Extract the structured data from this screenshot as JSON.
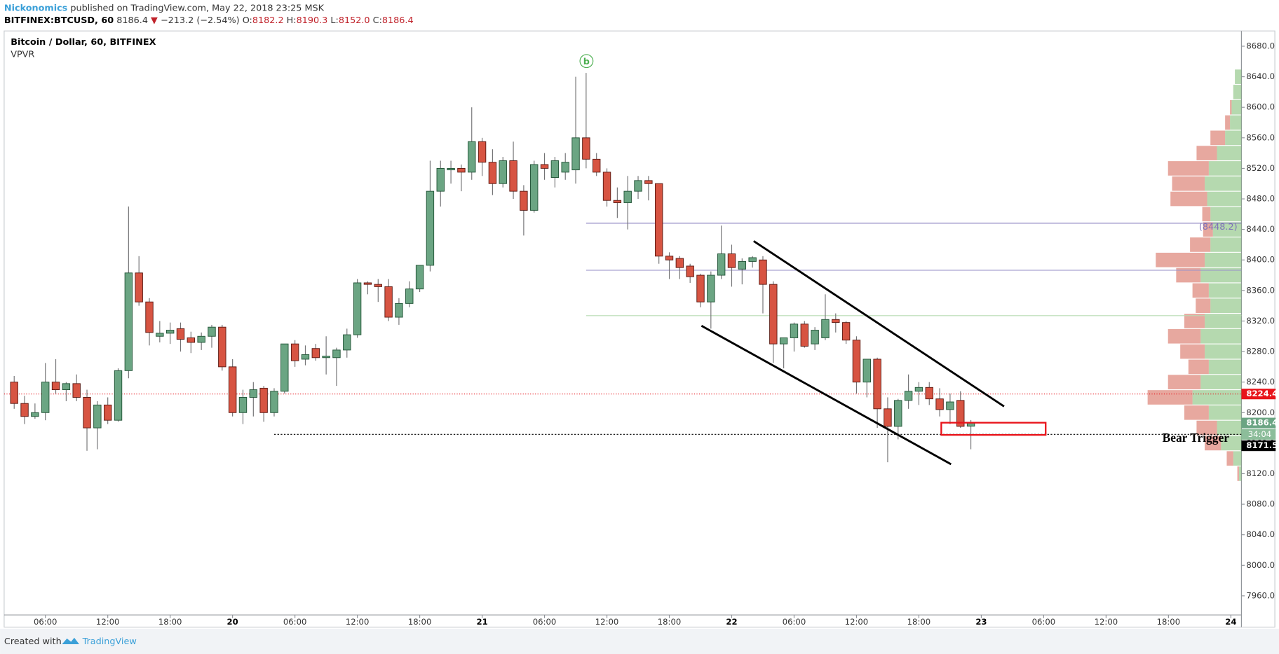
{
  "header": {
    "author": "Nickonomics",
    "published": "published on TradingView.com, May 22, 2018 23:25 MSK",
    "symbol": "BITFINEX:BTCUSD, 60",
    "last": "8186.4",
    "arrow": "▼",
    "change": "−213.2 (−2.54%)",
    "o_label": "O:",
    "o": "8182.2",
    "h_label": "H:",
    "h": "8190.3",
    "l_label": "L:",
    "l": "8152.0",
    "c_label": "C:",
    "c": "8186.4"
  },
  "footer": {
    "created": "Created with",
    "brand": "TradingView"
  },
  "chart_data": {
    "type": "candlestick",
    "title": "Bitcoin / Dollar, 60, BITFINEX",
    "subtitle": "VPVR",
    "up_color": "#6ba583",
    "down_color": "#d75442",
    "candles": {
      "open": [
        8240,
        8212,
        8195,
        8200,
        8240,
        8230,
        8238,
        8220,
        8180,
        8210,
        8190,
        8255,
        8383,
        8345,
        8300,
        8304,
        8310,
        8298,
        8292,
        8300,
        8312,
        8260,
        8200,
        8220,
        8232,
        8200,
        8228,
        8290,
        8270,
        8284,
        8272,
        8272,
        8282,
        8302,
        8370,
        8368,
        8365,
        8325,
        8343,
        8362,
        8393,
        8490,
        8518,
        8520,
        8515,
        8555,
        8528,
        8500,
        8530,
        8490,
        8465,
        8525,
        8508,
        8515,
        8518,
        8560,
        8532,
        8515,
        8478,
        8475,
        8490,
        8504,
        8500,
        8405,
        8402,
        8392,
        8380,
        8345,
        8380,
        8408,
        8388,
        8398,
        8400,
        8368,
        8290,
        8298,
        8316,
        8290,
        8298,
        8322,
        8318,
        8295,
        8240,
        8270,
        8205,
        8182,
        8216,
        8228,
        8233,
        8218,
        8204,
        8216,
        8182.2
      ],
      "high": [
        8248,
        8222,
        8212,
        8265,
        8270,
        8240,
        8250,
        8230,
        8215,
        8220,
        8258,
        8470,
        8405,
        8350,
        8320,
        8318,
        8318,
        8306,
        8305,
        8315,
        8315,
        8270,
        8230,
        8240,
        8235,
        8232,
        8290,
        8295,
        8288,
        8290,
        8300,
        8285,
        8310,
        8375,
        8372,
        8375,
        8375,
        8350,
        8372,
        8390,
        8530,
        8530,
        8530,
        8525,
        8600,
        8560,
        8545,
        8535,
        8555,
        8498,
        8530,
        8540,
        8535,
        8540,
        8640,
        8645,
        8540,
        8520,
        8495,
        8510,
        8510,
        8510,
        8500,
        8410,
        8405,
        8395,
        8382,
        8385,
        8445,
        8420,
        8402,
        8405,
        8405,
        8372,
        8298,
        8318,
        8320,
        8312,
        8355,
        8330,
        8320,
        8300,
        8270,
        8272,
        8220,
        8218,
        8250,
        8240,
        8240,
        8232,
        8225,
        8228,
        8190.3
      ],
      "low": [
        8205,
        8185,
        8192,
        8190,
        8225,
        8215,
        8215,
        8150,
        8152,
        8185,
        8188,
        8245,
        8340,
        8288,
        8292,
        8290,
        8280,
        8278,
        8282,
        8285,
        8255,
        8195,
        8185,
        8195,
        8188,
        8195,
        8225,
        8260,
        8262,
        8268,
        8250,
        8235,
        8272,
        8298,
        8355,
        8345,
        8320,
        8315,
        8338,
        8358,
        8385,
        8470,
        8500,
        8490,
        8505,
        8510,
        8485,
        8495,
        8480,
        8432,
        8462,
        8505,
        8495,
        8505,
        8500,
        8520,
        8510,
        8470,
        8455,
        8440,
        8480,
        8478,
        8395,
        8375,
        8375,
        8370,
        8338,
        8310,
        8375,
        8365,
        8368,
        8390,
        8330,
        8265,
        8258,
        8280,
        8285,
        8282,
        8295,
        8305,
        8290,
        8225,
        8220,
        8180,
        8135,
        8165,
        8205,
        8210,
        8210,
        8195,
        8185,
        8180,
        8152.0
      ],
      "close": [
        8212,
        8195,
        8200,
        8240,
        8230,
        8238,
        8220,
        8180,
        8210,
        8190,
        8255,
        8383,
        8345,
        8305,
        8304,
        8308,
        8296,
        8292,
        8300,
        8312,
        8260,
        8200,
        8220,
        8230,
        8200,
        8228,
        8290,
        8268,
        8276,
        8272,
        8274,
        8282,
        8302,
        8370,
        8368,
        8365,
        8325,
        8343,
        8362,
        8393,
        8490,
        8520,
        8520,
        8515,
        8555,
        8528,
        8500,
        8530,
        8490,
        8465,
        8525,
        8520,
        8530,
        8528,
        8560,
        8532,
        8515,
        8478,
        8475,
        8490,
        8504,
        8500,
        8405,
        8400,
        8390,
        8378,
        8345,
        8380,
        8408,
        8390,
        8398,
        8403,
        8368,
        8290,
        8298,
        8316,
        8287,
        8308,
        8322,
        8318,
        8295,
        8240,
        8270,
        8205,
        8182,
        8216,
        8228,
        8233,
        8218,
        8204,
        8214,
        8182,
        8186.4
      ]
    },
    "xticks": [
      "06:00",
      "12:00",
      "18:00",
      "20",
      "06:00",
      "12:00",
      "18:00",
      "21",
      "06:00",
      "12:00",
      "18:00",
      "22",
      "06:00",
      "12:00",
      "18:00",
      "23",
      "06:00",
      "12:00",
      "18:00",
      "24"
    ],
    "ylim": [
      7935,
      8700
    ],
    "yticks": [
      {
        "value": 7960,
        "label": "7960.0"
      },
      {
        "value": 8000,
        "label": "8000.0"
      },
      {
        "value": 8040,
        "label": "8040.0"
      },
      {
        "value": 8080,
        "label": "8080.0"
      },
      {
        "value": 8120,
        "label": "8120.0"
      },
      {
        "value": 8160,
        "label": "8160.0"
      },
      {
        "value": 8200,
        "label": "8200.0"
      },
      {
        "value": 8240,
        "label": "8240.0"
      },
      {
        "value": 8280,
        "label": "8280.0"
      },
      {
        "value": 8320,
        "label": "8320.0"
      },
      {
        "value": 8360,
        "label": "8360.0"
      },
      {
        "value": 8400,
        "label": "8400.0"
      },
      {
        "value": 8440,
        "label": "8440.0"
      },
      {
        "value": 8480,
        "label": "8480.0"
      },
      {
        "value": 8520,
        "label": "8520.0"
      },
      {
        "value": 8560,
        "label": "8560.0"
      },
      {
        "value": 8600,
        "label": "8600.0"
      },
      {
        "value": 8640,
        "label": "8640.0"
      },
      {
        "value": 8680,
        "label": "8680.0"
      }
    ],
    "levels": [
      {
        "value": 8448.2,
        "color": "#7e72b8",
        "label": "(8448.2)"
      },
      {
        "value": 8386.5,
        "color": "#9b93c9"
      },
      {
        "value": 8327,
        "color": "#b9dbb4"
      },
      {
        "value": 8224.4,
        "color": "#e8141b"
      },
      {
        "value": 8171.5,
        "color": "#000000"
      }
    ],
    "price_tags": [
      {
        "value": 8224.4,
        "color": "#e8141b"
      },
      {
        "value": 8186.4,
        "color": "#6ba583"
      },
      {
        "value": 8171.5,
        "color": "#000000"
      }
    ],
    "countdown": "34:04",
    "annotations": {
      "wave": "b",
      "trigger": "Bear Trigger"
    },
    "volume_profile": {
      "prices": [
        8640,
        8620,
        8600,
        8580,
        8560,
        8540,
        8520,
        8500,
        8480,
        8460,
        8440,
        8420,
        8400,
        8380,
        8360,
        8340,
        8320,
        8300,
        8280,
        8260,
        8240,
        8220,
        8200,
        8180,
        8160,
        8140,
        8120
      ],
      "up": [
        8,
        10,
        12,
        14,
        20,
        30,
        40,
        45,
        42,
        38,
        35,
        38,
        45,
        50,
        40,
        38,
        45,
        50,
        45,
        40,
        50,
        60,
        40,
        30,
        25,
        10,
        3
      ],
      "down": [
        0,
        0,
        2,
        6,
        18,
        25,
        50,
        40,
        45,
        10,
        12,
        25,
        60,
        30,
        20,
        18,
        25,
        40,
        30,
        25,
        40,
        55,
        30,
        25,
        20,
        8,
        2
      ]
    }
  }
}
